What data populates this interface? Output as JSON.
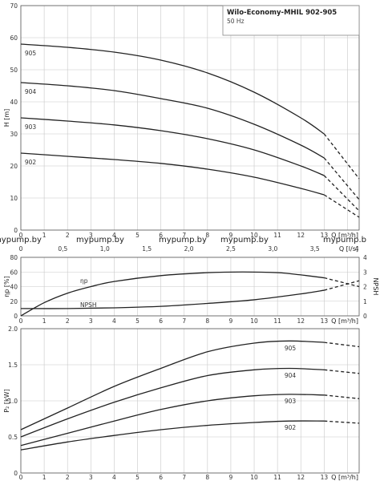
{
  "chart_data": [
    {
      "type": "line",
      "title": "Wilo-Economy-MHIL 902-905",
      "subtitle": "50 Hz",
      "ylabel": "H [m]",
      "xlabel": "Q [m³/h]",
      "xlabel2": "Q [l/s]",
      "xlim": [
        0,
        14.5
      ],
      "ylim": [
        0,
        70
      ],
      "xticks": [
        "0",
        "1",
        "2",
        "3",
        "4",
        "5",
        "6",
        "7",
        "8",
        "9",
        "10",
        "11",
        "12",
        "13"
      ],
      "yticks": [
        "0",
        "10",
        "20",
        "30",
        "40",
        "50",
        "60",
        "70"
      ],
      "x2ticks": [
        "0",
        "0,5",
        "1,0",
        "1,5",
        "2,0",
        "2,5",
        "3,0",
        "3,5",
        "4"
      ],
      "grid": true,
      "series": [
        {
          "name": "905",
          "x": [
            0,
            2,
            4,
            6,
            8,
            10,
            12,
            13,
            14.5
          ],
          "y": [
            58,
            57,
            55.5,
            53,
            49,
            43,
            35,
            30,
            16
          ]
        },
        {
          "name": "904",
          "x": [
            0,
            2,
            4,
            6,
            8,
            10,
            12,
            13,
            14.5
          ],
          "y": [
            46,
            45,
            43.5,
            41,
            38,
            33,
            26.5,
            22.5,
            9.5
          ]
        },
        {
          "name": "903",
          "x": [
            0,
            2,
            4,
            6,
            8,
            10,
            12,
            13,
            14.5
          ],
          "y": [
            35,
            34,
            32.8,
            31,
            28.5,
            25,
            20,
            17,
            6
          ]
        },
        {
          "name": "902",
          "x": [
            0,
            2,
            4,
            6,
            8,
            10,
            12,
            13,
            14.5
          ],
          "y": [
            24,
            23,
            22,
            20.8,
            19,
            16.5,
            13,
            11,
            4
          ]
        }
      ],
      "solid_until_x": 13
    },
    {
      "type": "line",
      "ylabel": "ηp [%]",
      "ylabel_right": "NPSH",
      "xlabel": "Q [m³/h]",
      "xlim": [
        0,
        14.5
      ],
      "ylim": [
        0,
        80
      ],
      "ylim_right": [
        0,
        4
      ],
      "xticks": [
        "0",
        "1",
        "2",
        "3",
        "4",
        "5",
        "6",
        "7",
        "8",
        "9",
        "10",
        "11",
        "12",
        "13"
      ],
      "yticks": [
        "0",
        "20",
        "40",
        "60",
        "80"
      ],
      "yticks_right": [
        "0",
        "1",
        "2",
        "3",
        "4"
      ],
      "grid": true,
      "series": [
        {
          "name": "ηp",
          "x": [
            0,
            1,
            2,
            3,
            4,
            6,
            8,
            9.5,
            11,
            12,
            13,
            14.5
          ],
          "y": [
            0,
            18,
            31,
            40,
            47,
            55,
            59,
            60,
            59,
            56,
            52,
            40
          ]
        },
        {
          "name": "NPSH",
          "x": [
            0,
            2,
            4,
            6,
            8,
            10,
            12,
            13,
            14.5
          ],
          "y": [
            10,
            10,
            11,
            13,
            17,
            22,
            30,
            35,
            48
          ]
        }
      ],
      "solid_until_x": 13
    },
    {
      "type": "line",
      "ylabel": "P₂ [kW]",
      "xlabel": "Q [m³/h]",
      "xlim": [
        0,
        14.5
      ],
      "ylim": [
        0,
        2.0
      ],
      "xticks": [
        "0",
        "1",
        "2",
        "3",
        "4",
        "5",
        "6",
        "7",
        "8",
        "9",
        "10",
        "11",
        "12",
        "13"
      ],
      "yticks": [
        "0",
        "0.5",
        "1.0",
        "1.5",
        "2.0"
      ],
      "grid": true,
      "series": [
        {
          "name": "905",
          "x": [
            0,
            2,
            4,
            6,
            8,
            10,
            11.5,
            13,
            14.5
          ],
          "y": [
            0.6,
            0.9,
            1.2,
            1.45,
            1.68,
            1.8,
            1.83,
            1.81,
            1.75
          ]
        },
        {
          "name": "904",
          "x": [
            0,
            2,
            4,
            6,
            8,
            10,
            11.5,
            13,
            14.5
          ],
          "y": [
            0.5,
            0.75,
            0.98,
            1.18,
            1.35,
            1.43,
            1.45,
            1.43,
            1.38
          ]
        },
        {
          "name": "903",
          "x": [
            0,
            2,
            4,
            6,
            8,
            10,
            11.5,
            13,
            14.5
          ],
          "y": [
            0.38,
            0.55,
            0.72,
            0.88,
            1.0,
            1.07,
            1.09,
            1.08,
            1.03
          ]
        },
        {
          "name": "902",
          "x": [
            0,
            2,
            4,
            6,
            8,
            10,
            11.5,
            13,
            14.5
          ],
          "y": [
            0.32,
            0.43,
            0.52,
            0.6,
            0.66,
            0.7,
            0.72,
            0.72,
            0.69
          ]
        }
      ],
      "solid_until_x": 13
    }
  ],
  "watermark": [
    "mypump.by",
    "mypump.by",
    "mypump.by",
    "mypump.by",
    "mypump.b"
  ]
}
